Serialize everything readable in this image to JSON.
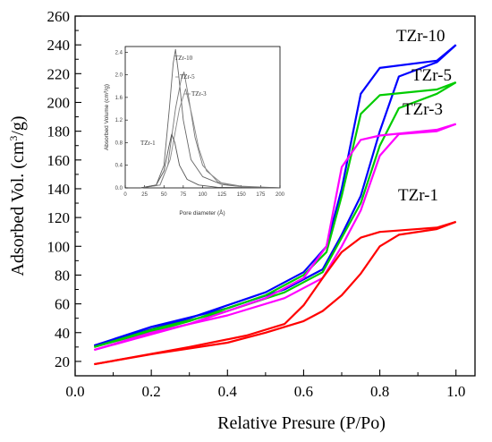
{
  "chart_data": [
    {
      "type": "line",
      "xlabel": "Relative Presure (P/Po)",
      "ylabel_main": "Adsorbed Vol. (cm",
      "ylabel_sup": "3",
      "ylabel_end": "/g)",
      "xlim": [
        0.0,
        1.05
      ],
      "ylim": [
        10,
        260
      ],
      "x_ticks": [
        "0.0",
        "0.2",
        "0.4",
        "0.6",
        "0.8",
        "1.0"
      ],
      "y_ticks": [
        "20",
        "40",
        "60",
        "80",
        "100",
        "120",
        "140",
        "160",
        "180",
        "200",
        "220",
        "240",
        "260"
      ],
      "series": [
        {
          "name": "TZr-10",
          "color": "#0000ff",
          "adsorption": [
            [
              0.05,
              31
            ],
            [
              0.2,
              44
            ],
            [
              0.4,
              57
            ],
            [
              0.55,
              70
            ],
            [
              0.65,
              84
            ],
            [
              0.7,
              108
            ],
            [
              0.75,
              135
            ],
            [
              0.8,
              180
            ],
            [
              0.85,
              218
            ],
            [
              0.95,
              228
            ],
            [
              1.0,
              240
            ]
          ],
          "desorption": [
            [
              1.0,
              240
            ],
            [
              0.95,
              229
            ],
            [
              0.8,
              224
            ],
            [
              0.75,
              206
            ],
            [
              0.7,
              140
            ],
            [
              0.66,
              100
            ],
            [
              0.6,
              82
            ],
            [
              0.5,
              68
            ],
            [
              0.3,
              50
            ],
            [
              0.05,
              31
            ]
          ]
        },
        {
          "name": "TZr-5",
          "color": "#00cc00",
          "adsorption": [
            [
              0.05,
              30
            ],
            [
              0.2,
              42
            ],
            [
              0.4,
              55
            ],
            [
              0.55,
              68
            ],
            [
              0.65,
              82
            ],
            [
              0.7,
              106
            ],
            [
              0.75,
              130
            ],
            [
              0.8,
              170
            ],
            [
              0.85,
              196
            ],
            [
              0.95,
              206
            ],
            [
              1.0,
              214
            ]
          ],
          "desorption": [
            [
              1.0,
              214
            ],
            [
              0.95,
              209
            ],
            [
              0.8,
              205
            ],
            [
              0.75,
              192
            ],
            [
              0.7,
              135
            ],
            [
              0.66,
              96
            ],
            [
              0.6,
              80
            ],
            [
              0.5,
              66
            ],
            [
              0.3,
              48
            ],
            [
              0.05,
              30
            ]
          ]
        },
        {
          "name": "TZr-3",
          "color": "#ff00ff",
          "adsorption": [
            [
              0.05,
              28
            ],
            [
              0.2,
              40
            ],
            [
              0.4,
              52
            ],
            [
              0.55,
              64
            ],
            [
              0.65,
              78
            ],
            [
              0.7,
              100
            ],
            [
              0.75,
              125
            ],
            [
              0.8,
              163
            ],
            [
              0.85,
              178
            ],
            [
              0.95,
              180
            ],
            [
              1.0,
              185
            ]
          ],
          "desorption": [
            [
              1.0,
              185
            ],
            [
              0.95,
              181
            ],
            [
              0.8,
              177
            ],
            [
              0.75,
              174
            ],
            [
              0.7,
              155
            ],
            [
              0.66,
              100
            ],
            [
              0.6,
              78
            ],
            [
              0.5,
              64
            ],
            [
              0.3,
              46
            ],
            [
              0.05,
              28
            ]
          ]
        },
        {
          "name": "TZr-1",
          "color": "#ff0000",
          "adsorption": [
            [
              0.05,
              18
            ],
            [
              0.2,
              25
            ],
            [
              0.4,
              33
            ],
            [
              0.5,
              40
            ],
            [
              0.6,
              48
            ],
            [
              0.65,
              55
            ],
            [
              0.7,
              66
            ],
            [
              0.75,
              81
            ],
            [
              0.8,
              100
            ],
            [
              0.85,
              108
            ],
            [
              0.95,
              112
            ],
            [
              1.0,
              117
            ]
          ],
          "desorption": [
            [
              1.0,
              117
            ],
            [
              0.95,
              113
            ],
            [
              0.8,
              110
            ],
            [
              0.75,
              106
            ],
            [
              0.7,
              96
            ],
            [
              0.65,
              78
            ],
            [
              0.6,
              59
            ],
            [
              0.55,
              46
            ],
            [
              0.45,
              38
            ],
            [
              0.3,
              30
            ],
            [
              0.05,
              18
            ]
          ]
        }
      ]
    },
    {
      "type": "line",
      "xlabel": "Pore diameter (Å)",
      "ylabel_main": "Absorbed Volume  (cm",
      "ylabel_sup": "3",
      "ylabel_end": "/g)",
      "xlim": [
        0,
        200
      ],
      "ylim": [
        0.0,
        2.5
      ],
      "x_ticks": [
        "0",
        "25",
        "50",
        "75",
        "100",
        "125",
        "150",
        "175",
        "200"
      ],
      "y_ticks": [
        "0.0",
        "0.4",
        "0.8",
        "1.2",
        "1.6",
        "2.0",
        "2.4"
      ],
      "series": [
        {
          "name": "TZr-10",
          "color": "#666666",
          "points": [
            [
              20,
              0
            ],
            [
              40,
              0.05
            ],
            [
              50,
              0.4
            ],
            [
              57,
              1.4
            ],
            [
              62,
              2.2
            ],
            [
              65,
              2.45
            ],
            [
              69,
              2.0
            ],
            [
              75,
              1.2
            ],
            [
              85,
              0.5
            ],
            [
              100,
              0.2
            ],
            [
              125,
              0.06
            ],
            [
              150,
              0.02
            ],
            [
              175,
              0.01
            ],
            [
              200,
              0.0
            ]
          ]
        },
        {
          "name": "TZr-5",
          "color": "#777777",
          "points": [
            [
              20,
              0
            ],
            [
              45,
              0.05
            ],
            [
              55,
              0.4
            ],
            [
              65,
              1.4
            ],
            [
              72,
              1.9
            ],
            [
              76,
              2.05
            ],
            [
              82,
              1.6
            ],
            [
              90,
              0.9
            ],
            [
              100,
              0.4
            ],
            [
              120,
              0.1
            ],
            [
              150,
              0.03
            ],
            [
              200,
              0.0
            ]
          ]
        },
        {
          "name": "TZr-3",
          "color": "#888888",
          "points": [
            [
              20,
              0
            ],
            [
              45,
              0.05
            ],
            [
              58,
              0.5
            ],
            [
              70,
              1.4
            ],
            [
              78,
              1.75
            ],
            [
              86,
              1.3
            ],
            [
              95,
              0.7
            ],
            [
              105,
              0.3
            ],
            [
              125,
              0.08
            ],
            [
              150,
              0.02
            ],
            [
              200,
              0.0
            ]
          ]
        },
        {
          "name": "TZr-1",
          "color": "#555555",
          "points": [
            [
              20,
              0
            ],
            [
              40,
              0.05
            ],
            [
              50,
              0.3
            ],
            [
              56,
              0.7
            ],
            [
              60,
              0.95
            ],
            [
              64,
              0.8
            ],
            [
              70,
              0.4
            ],
            [
              80,
              0.15
            ],
            [
              95,
              0.05
            ],
            [
              120,
              0.01
            ],
            [
              200,
              0.0
            ]
          ]
        }
      ]
    }
  ]
}
